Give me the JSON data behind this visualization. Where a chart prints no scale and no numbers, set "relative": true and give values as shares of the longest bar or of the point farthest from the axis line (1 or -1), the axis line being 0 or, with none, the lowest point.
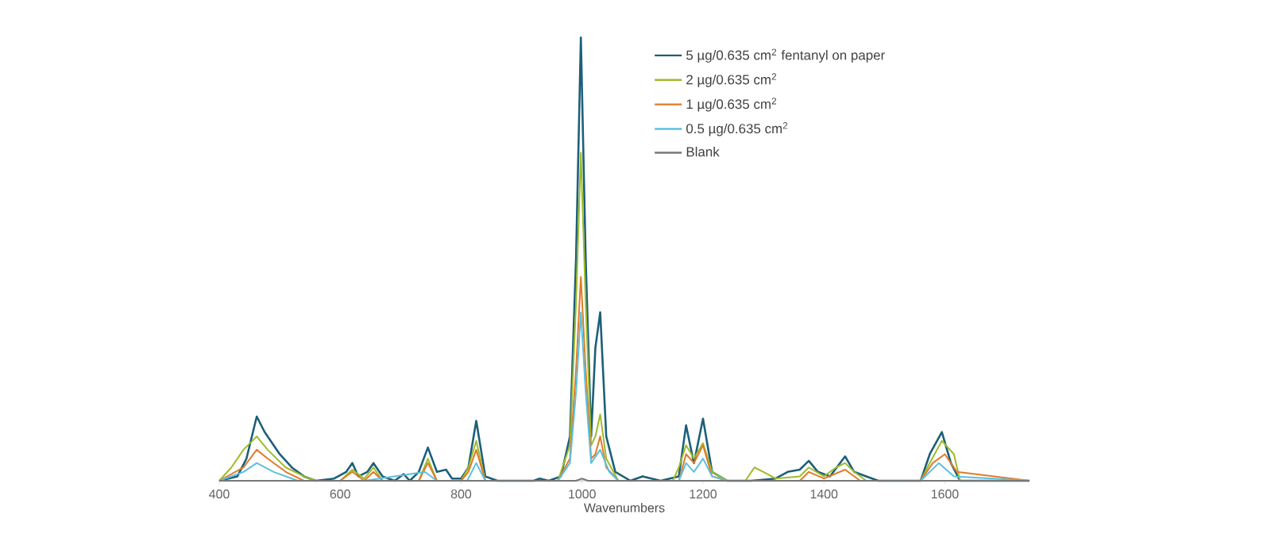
{
  "chart_data": {
    "type": "line",
    "relative": true,
    "xlabel": "Wavenumbers",
    "xlim": [
      400,
      1740
    ],
    "xticks": [
      400,
      600,
      800,
      1000,
      1200,
      1400,
      1600
    ],
    "legend": "top right",
    "grid": false,
    "series": [
      {
        "name": "5 µg/0.635 cm$^{2}$ fentanyl on paper",
        "color": "#1d5f7a",
        "x": [
          400,
          430,
          445,
          462,
          475,
          500,
          520,
          540,
          560,
          590,
          610,
          620,
          630,
          645,
          655,
          670,
          690,
          705,
          715,
          730,
          745,
          760,
          775,
          785,
          800,
          812,
          825,
          840,
          860,
          920,
          930,
          945,
          965,
          980,
          990,
          998,
          1006,
          1015,
          1022,
          1030,
          1040,
          1055,
          1080,
          1100,
          1130,
          1160,
          1172,
          1185,
          1200,
          1215,
          1240,
          1280,
          1320,
          1340,
          1360,
          1375,
          1390,
          1410,
          1435,
          1450,
          1470,
          1490,
          1560,
          1575,
          1595,
          1610,
          1625,
          1740
        ],
        "values": [
          0,
          0.01,
          0.05,
          0.145,
          0.11,
          0.06,
          0.03,
          0.01,
          0,
          0.005,
          0.02,
          0.04,
          0.01,
          0.02,
          0.04,
          0.01,
          0,
          0.015,
          0,
          0.02,
          0.075,
          0.02,
          0.025,
          0.005,
          0.005,
          0.03,
          0.135,
          0.01,
          0,
          0,
          0.005,
          0,
          0.01,
          0.1,
          0.5,
          1,
          0.5,
          0.1,
          0.3,
          0.38,
          0.1,
          0.02,
          0,
          0.01,
          0,
          0.01,
          0.125,
          0.04,
          0.14,
          0.02,
          0,
          0,
          0.005,
          0.02,
          0.025,
          0.045,
          0.02,
          0.01,
          0.055,
          0.02,
          0.01,
          0,
          0,
          0.06,
          0.11,
          0.04,
          0,
          0
        ]
      },
      {
        "name": "2 µg/0.635 cm$^{2}$",
        "color": "#9dbb2a",
        "x": [
          400,
          420,
          440,
          462,
          480,
          510,
          540,
          560,
          600,
          620,
          640,
          655,
          670,
          730,
          745,
          760,
          800,
          812,
          825,
          840,
          960,
          980,
          990,
          998,
          1006,
          1015,
          1022,
          1030,
          1040,
          1060,
          1150,
          1160,
          1172,
          1185,
          1200,
          1215,
          1240,
          1270,
          1285,
          1300,
          1320,
          1360,
          1375,
          1400,
          1420,
          1435,
          1450,
          1470,
          1560,
          1575,
          1595,
          1615,
          1625,
          1740
        ],
        "values": [
          0,
          0.03,
          0.07,
          0.1,
          0.07,
          0.03,
          0.01,
          0,
          0,
          0.025,
          0.005,
          0.03,
          0,
          0,
          0.05,
          0,
          0,
          0.03,
          0.09,
          0,
          0,
          0.08,
          0.4,
          0.74,
          0.4,
          0.08,
          0.1,
          0.15,
          0.05,
          0,
          0,
          0.03,
          0.08,
          0.05,
          0.085,
          0.02,
          0,
          0,
          0.03,
          0.02,
          0.005,
          0.01,
          0.03,
          0.01,
          0.03,
          0.04,
          0.02,
          0,
          0,
          0.04,
          0.09,
          0.06,
          0,
          0
        ]
      },
      {
        "name": "1 µg/0.635 cm$^{2}$",
        "color": "#e07b2a",
        "x": [
          400,
          440,
          462,
          480,
          510,
          540,
          600,
          620,
          640,
          655,
          670,
          730,
          745,
          760,
          800,
          812,
          825,
          840,
          960,
          980,
          990,
          998,
          1006,
          1015,
          1022,
          1030,
          1040,
          1060,
          1160,
          1172,
          1185,
          1200,
          1215,
          1240,
          1360,
          1375,
          1400,
          1435,
          1460,
          1560,
          1580,
          1600,
          1620,
          1740
        ],
        "values": [
          0,
          0.03,
          0.07,
          0.05,
          0.02,
          0,
          0,
          0.02,
          0,
          0.02,
          0,
          0,
          0.04,
          0,
          0,
          0.02,
          0.07,
          0,
          0,
          0.05,
          0.25,
          0.46,
          0.25,
          0.05,
          0.06,
          0.1,
          0.03,
          0,
          0,
          0.06,
          0.04,
          0.08,
          0.01,
          0,
          0,
          0.02,
          0.005,
          0.025,
          0,
          0,
          0.04,
          0.06,
          0.02,
          0
        ]
      },
      {
        "name": "0.5 µg/0.635 cm$^{2}$",
        "color": "#5bc0de",
        "x": [
          400,
          440,
          462,
          490,
          530,
          620,
          640,
          740,
          760,
          810,
          825,
          840,
          960,
          980,
          990,
          998,
          1006,
          1015,
          1030,
          1045,
          1060,
          1160,
          1172,
          1185,
          1200,
          1215,
          1240,
          1560,
          1590,
          1615,
          1740
        ],
        "values": [
          0,
          0.02,
          0.04,
          0.02,
          0,
          0,
          0,
          0.02,
          0,
          0,
          0.04,
          0,
          0,
          0.04,
          0.2,
          0.38,
          0.2,
          0.04,
          0.07,
          0.02,
          0,
          0,
          0.04,
          0.02,
          0.05,
          0.01,
          0,
          0,
          0.04,
          0.01,
          0
        ]
      },
      {
        "name": "Blank",
        "color": "#777777",
        "x": [
          400,
          990,
          1000,
          1010,
          1740
        ],
        "values": [
          0,
          0,
          0.005,
          0,
          0
        ]
      }
    ]
  }
}
